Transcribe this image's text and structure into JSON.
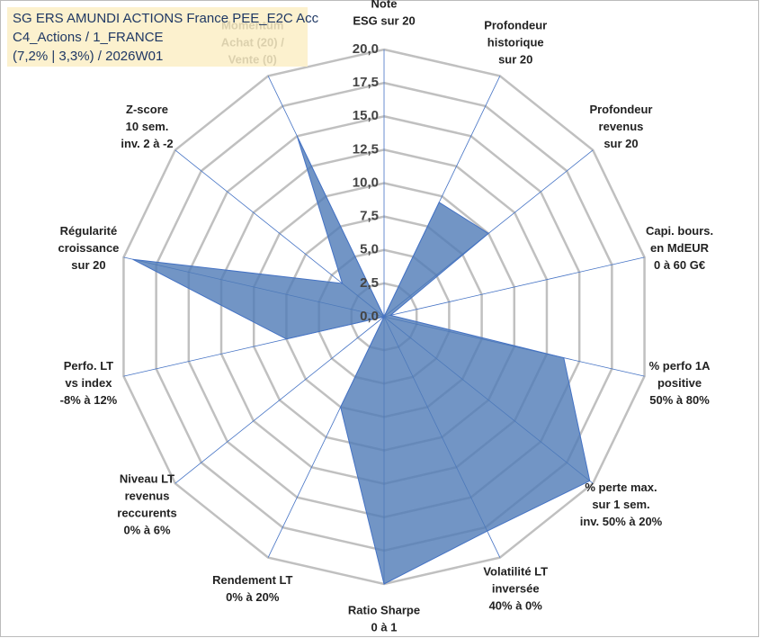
{
  "chart_data": {
    "type": "radar",
    "title": [
      "SG ERS AMUNDI ACTIONS France PEE_E2C Acc",
      "C4_Actions / 1_FRANCE",
      "(7,2% | 3,3%) / 2026W01"
    ],
    "categories": [
      [
        "Note",
        "ESG sur 20"
      ],
      [
        "Profondeur",
        "historique",
        "sur 20"
      ],
      [
        "Profondeur",
        "revenus",
        "sur 20"
      ],
      [
        "Capi. bours.",
        "en MdEUR",
        "0 à 60 G€"
      ],
      [
        "% perfo 1A",
        "positive",
        "50% à 80%"
      ],
      [
        "% perte max.",
        "sur 1 sem.",
        "inv. 50% à 20%"
      ],
      [
        "Volatilité LT",
        "inversée",
        "40% à 0%"
      ],
      [
        "Ratio Sharpe",
        "0 à 1"
      ],
      [
        "Rendement LT",
        "0% à 20%"
      ],
      [
        "Niveau LT",
        "revenus",
        "reccurents",
        "0% à 6%"
      ],
      [
        "Perfo. LT",
        "vs index",
        "-8% à 12%"
      ],
      [
        "Régularité",
        "croissance",
        "sur 20"
      ],
      [
        "Z-score",
        "10 sem.",
        "inv. 2 à -2"
      ],
      [
        "Momentum",
        "Achat (20) /",
        "Vente (0)"
      ]
    ],
    "values": [
      0,
      9.5,
      10,
      0.5,
      13.8,
      19.7,
      17.8,
      20,
      7.5,
      0,
      7.5,
      19.3,
      4,
      15
    ],
    "color": "#4f7bb6",
    "ylim": [
      0,
      20
    ],
    "yticks": [
      {
        "value": 0,
        "label": "0,0"
      },
      {
        "value": 2.5,
        "label": "2,5"
      },
      {
        "value": 5,
        "label": "5,0"
      },
      {
        "value": 7.5,
        "label": "7,5"
      },
      {
        "value": 10,
        "label": "10,0"
      },
      {
        "value": 12.5,
        "label": "12,5"
      },
      {
        "value": 15,
        "label": "15,0"
      },
      {
        "value": 17.5,
        "label": "17,5"
      },
      {
        "value": 20,
        "label": "20,0"
      }
    ]
  }
}
